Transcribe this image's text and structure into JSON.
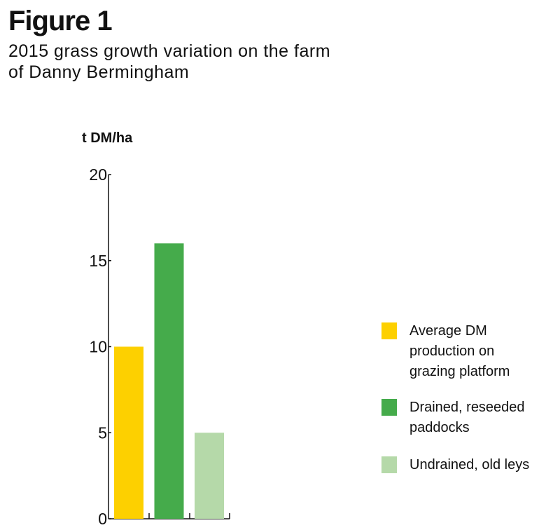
{
  "figure": {
    "label": "Figure 1",
    "title": "2015 grass growth variation on the farm of Danny Bermingham"
  },
  "chart_data": {
    "type": "bar",
    "title": "2015 grass growth variation on the farm of Danny Bermingham",
    "ylabel": "t DM/ha",
    "xlabel": "",
    "ylim": [
      0,
      20
    ],
    "yticks": [
      0,
      5,
      10,
      15,
      20
    ],
    "grid": false,
    "legend_position": "right",
    "categories": [
      "Average DM production on grazing platform",
      "Drained, reseeded paddocks",
      "Undrained, old leys"
    ],
    "values": [
      10,
      16,
      5
    ],
    "colors": [
      "#FDD000",
      "#45AB4B",
      "#B5D9A9"
    ],
    "legend": [
      {
        "label": "Average DM production on grazing platform",
        "color": "#FDD000"
      },
      {
        "label": "Drained, reseeded paddocks",
        "color": "#45AB4B"
      },
      {
        "label": "Undrained, old leys",
        "color": "#B5D9A9"
      }
    ]
  }
}
